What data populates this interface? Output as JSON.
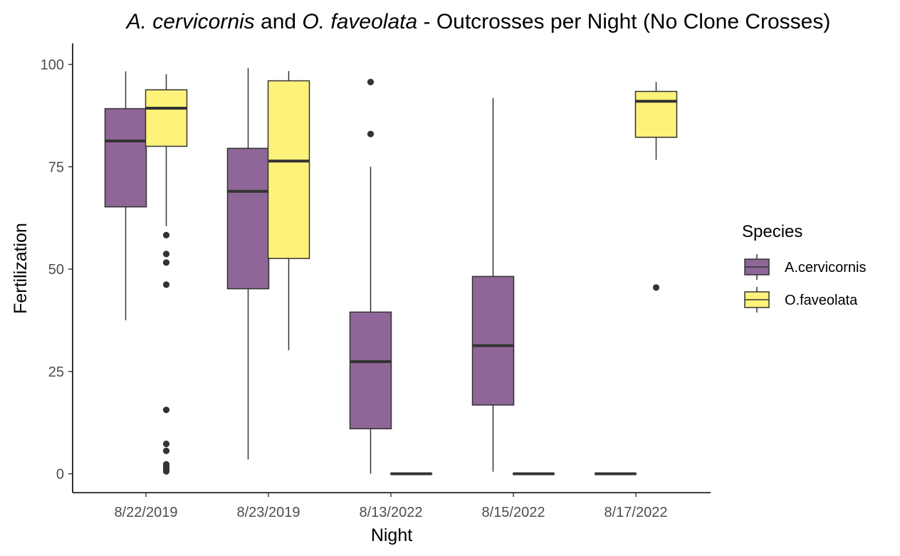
{
  "chart_data": {
    "type": "boxplot",
    "title_parts": [
      {
        "text": "A. cervicornis",
        "italic": true
      },
      {
        "text": " and ",
        "italic": false
      },
      {
        "text": "O. faveolata",
        "italic": true
      },
      {
        "text": " - Outcrosses per Night (No Clone Crosses)",
        "italic": false
      }
    ],
    "xlabel": "Night",
    "ylabel": "Fertilization",
    "categories": [
      "8/22/2019",
      "8/23/2019",
      "8/13/2022",
      "8/15/2022",
      "8/17/2022"
    ],
    "ylim": [
      -4,
      104
    ],
    "yticks": [
      0,
      25,
      50,
      75,
      100
    ],
    "legend": {
      "title": "Species",
      "position": "right",
      "entries": [
        {
          "name": "A.cervicornis",
          "color": "#8e6698"
        },
        {
          "name": "O.faveolata",
          "color": "#fdf27a"
        }
      ]
    },
    "series": [
      {
        "name": "A.cervicornis",
        "color": "#8e6698",
        "boxes": [
          {
            "category": "8/22/2019",
            "whisker_low": 37.5,
            "q1": 65.2,
            "median": 81.3,
            "q3": 89.2,
            "whisker_high": 98.3,
            "outliers": []
          },
          {
            "category": "8/23/2019",
            "whisker_low": 3.5,
            "q1": 45.2,
            "median": 69.0,
            "q3": 79.5,
            "whisker_high": 99.1,
            "outliers": []
          },
          {
            "category": "8/13/2022",
            "whisker_low": 0.0,
            "q1": 11.0,
            "median": 27.4,
            "q3": 39.5,
            "whisker_high": 75.0,
            "outliers": [
              83.0,
              95.7
            ]
          },
          {
            "category": "8/15/2022",
            "whisker_low": 0.5,
            "q1": 16.8,
            "median": 31.3,
            "q3": 48.2,
            "whisker_high": 91.8,
            "outliers": []
          },
          {
            "category": "8/17/2022",
            "whisker_low": 0.0,
            "q1": 0.0,
            "median": 0.0,
            "q3": 0.0,
            "whisker_high": 0.0,
            "outliers": []
          }
        ]
      },
      {
        "name": "O.faveolata",
        "color": "#fdf27a",
        "boxes": [
          {
            "category": "8/22/2019",
            "whisker_low": 60.5,
            "q1": 80.0,
            "median": 89.3,
            "q3": 93.8,
            "whisker_high": 97.6,
            "outliers": [
              58.3,
              53.7,
              51.6,
              46.2,
              15.6,
              7.3,
              5.6,
              2.3,
              1.6,
              1.1,
              0.6
            ]
          },
          {
            "category": "8/23/2019",
            "whisker_low": 30.2,
            "q1": 52.6,
            "median": 76.4,
            "q3": 96.0,
            "whisker_high": 98.4,
            "outliers": []
          },
          {
            "category": "8/13/2022",
            "whisker_low": 0.0,
            "q1": 0.0,
            "median": 0.0,
            "q3": 0.0,
            "whisker_high": 0.0,
            "outliers": []
          },
          {
            "category": "8/15/2022",
            "whisker_low": 0.0,
            "q1": 0.0,
            "median": 0.0,
            "q3": 0.0,
            "whisker_high": 0.0,
            "outliers": []
          },
          {
            "category": "8/17/2022",
            "whisker_low": 76.7,
            "q1": 82.2,
            "median": 91.0,
            "q3": 93.4,
            "whisker_high": 95.7,
            "outliers": [
              45.5
            ]
          }
        ]
      }
    ]
  }
}
